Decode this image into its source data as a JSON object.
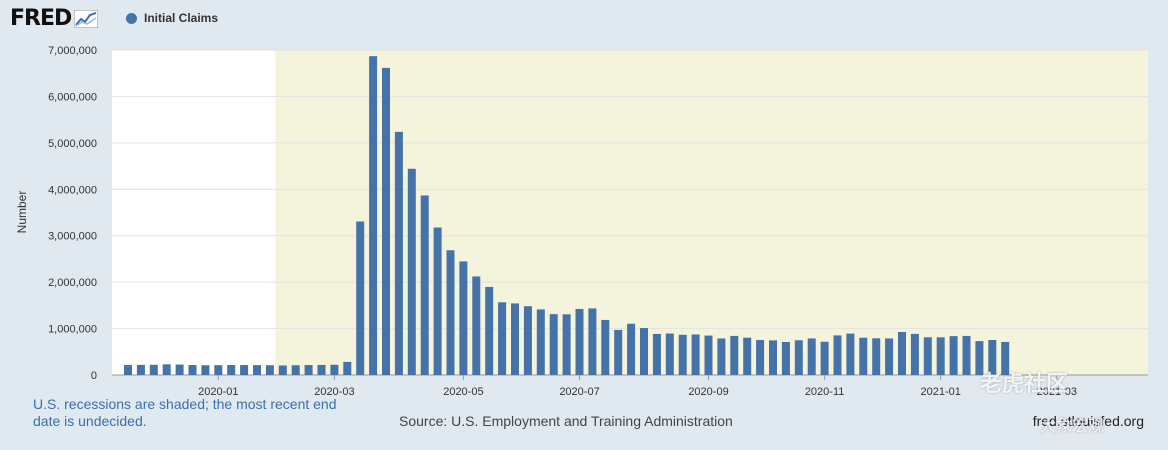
{
  "header": {
    "logo_text": "FRED",
    "legend_label": "Initial Claims",
    "legend_color": "#4572a7"
  },
  "footer": {
    "recession_note": "U.S. recessions are shaded; the most recent end date is undecided.",
    "source": "Source: U.S. Employment and Training Administration",
    "url": "fred.stlouisfed.org"
  },
  "watermarks": [
    "老虎社区",
    "大象宏观"
  ],
  "chart_data": {
    "type": "bar",
    "ylabel": "Number",
    "ylim": [
      0,
      7000000
    ],
    "yticks": [
      0,
      1000000,
      2000000,
      3000000,
      4000000,
      5000000,
      6000000,
      7000000
    ],
    "ytick_labels": [
      "0",
      "1,000,000",
      "2,000,000",
      "3,000,000",
      "4,000,000",
      "5,000,000",
      "6,000,000",
      "7,000,000"
    ],
    "xtick_labels": [
      "2020-01",
      "2020-03",
      "2020-05",
      "2020-07",
      "2020-09",
      "2020-11",
      "2021-01",
      "2021-03"
    ],
    "xtick_bar_index": [
      7,
      16,
      26,
      35,
      45,
      54,
      63,
      72
    ],
    "recession_start_bar_index": 12,
    "grid": true,
    "bar_color": "#4572a7",
    "recession_color": "#f4f4dc",
    "series": [
      {
        "name": "Initial Claims",
        "values": [
          215000,
          218000,
          220000,
          230000,
          225000,
          215000,
          210000,
          212000,
          215000,
          214000,
          213000,
          210000,
          205000,
          210000,
          215000,
          217000,
          220000,
          282000,
          3307000,
          6867000,
          6615000,
          5237000,
          4442000,
          3867000,
          3176000,
          2687000,
          2446000,
          2123000,
          1897000,
          1566000,
          1542000,
          1482000,
          1413000,
          1310000,
          1307000,
          1422000,
          1434000,
          1186000,
          971000,
          1104000,
          1011000,
          884000,
          893000,
          866000,
          873000,
          849000,
          787000,
          842000,
          804000,
          755000,
          746000,
          711000,
          748000,
          787000,
          716000,
          853000,
          892000,
          803000,
          790000,
          787000,
          926000,
          886000,
          812000,
          812000,
          837000,
          841000,
          730000,
          754000,
          712000
        ]
      }
    ]
  }
}
